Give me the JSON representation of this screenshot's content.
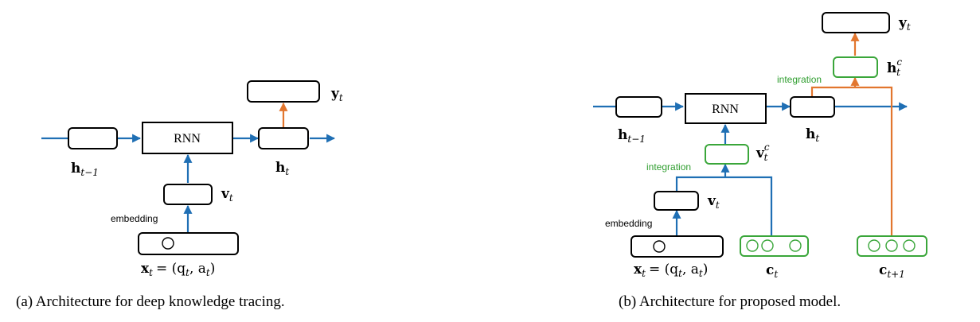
{
  "colors": {
    "blue": "#1f6fb4",
    "orange": "#e2762e",
    "green": "#3aa63a",
    "green_text": "#2f9e2f"
  },
  "left": {
    "rnn": "RNN",
    "embedding": "embedding",
    "labels": {
      "h_prev": {
        "main": "h",
        "sub": "t−1"
      },
      "h": {
        "main": "h",
        "sub": "t"
      },
      "v": {
        "main": "v",
        "sub": "t"
      },
      "y": {
        "main": "y",
        "sub": "t"
      },
      "x": "x",
      "x_sub": "t",
      "x_eq": "= (q",
      "x_q_sub": "t",
      "x_comma": ", a",
      "x_a_sub": "t",
      "x_close": ")"
    },
    "caption": "(a) Architecture for deep knowledge tracing."
  },
  "right": {
    "rnn": "RNN",
    "embedding": "embedding",
    "integration_top": "integration",
    "integration_mid": "integration",
    "labels": {
      "h_prev": {
        "main": "h",
        "sub": "t−1"
      },
      "h": {
        "main": "h",
        "sub": "t"
      },
      "v": {
        "main": "v",
        "sub": "t"
      },
      "vc": {
        "main": "v",
        "sub": "t",
        "sup": "c"
      },
      "hc": {
        "main": "h",
        "sub": "t",
        "sup": "c"
      },
      "y": {
        "main": "y",
        "sub": "t"
      },
      "c": {
        "main": "c",
        "sub": "t"
      },
      "c_next": {
        "main": "c",
        "sub": "t+1"
      },
      "x": "x",
      "x_sub": "t",
      "x_eq": "= (q",
      "x_q_sub": "t",
      "x_comma": ", a",
      "x_a_sub": "t",
      "x_close": ")"
    },
    "caption": "(b) Architecture for proposed model."
  }
}
